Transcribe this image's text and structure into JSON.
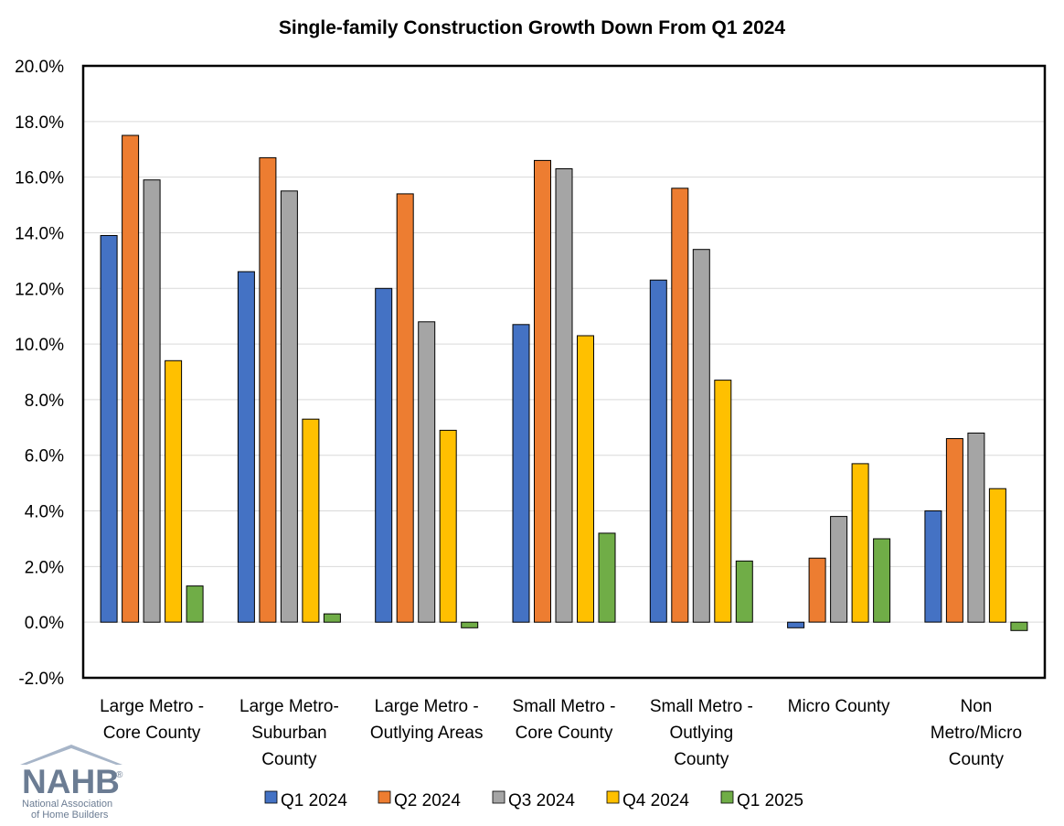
{
  "logo": {
    "word": "NAHB",
    "registered": "®",
    "sub_line_1": "National Association",
    "sub_line_2": "of Home Builders"
  },
  "chart_data": {
    "type": "bar",
    "title": "Single-family Construction Growth Down From Q1 2024",
    "xlabel": "",
    "ylabel": "",
    "ylim": [
      -0.02,
      0.2
    ],
    "ytick_step": 0.02,
    "y_format": "percent_1dp",
    "grid": true,
    "legend_position": "bottom",
    "categories": [
      [
        "Large Metro -",
        "Core County"
      ],
      [
        "Large Metro-",
        "Suburban",
        "County"
      ],
      [
        "Large Metro -",
        "Outlying Areas"
      ],
      [
        "Small Metro -",
        "Core County"
      ],
      [
        "Small Metro -",
        "Outlying",
        "County"
      ],
      [
        "Micro County"
      ],
      [
        "Non",
        "Metro/Micro",
        "County"
      ]
    ],
    "series": [
      {
        "name": "Q1 2024",
        "color": "#4472c4",
        "values": [
          0.139,
          0.126,
          0.12,
          0.107,
          0.123,
          -0.002,
          0.04
        ]
      },
      {
        "name": "Q2 2024",
        "color": "#ed7d31",
        "values": [
          0.175,
          0.167,
          0.154,
          0.166,
          0.156,
          0.023,
          0.066
        ]
      },
      {
        "name": "Q3 2024",
        "color": "#a5a5a5",
        "values": [
          0.159,
          0.155,
          0.108,
          0.163,
          0.134,
          0.038,
          0.068
        ]
      },
      {
        "name": "Q4 2024",
        "color": "#ffc000",
        "values": [
          0.094,
          0.073,
          0.069,
          0.103,
          0.087,
          0.057,
          0.048
        ]
      },
      {
        "name": "Q1 2025",
        "color": "#70ad47",
        "values": [
          0.013,
          0.003,
          -0.002,
          0.032,
          0.022,
          0.03,
          -0.003
        ]
      }
    ]
  }
}
